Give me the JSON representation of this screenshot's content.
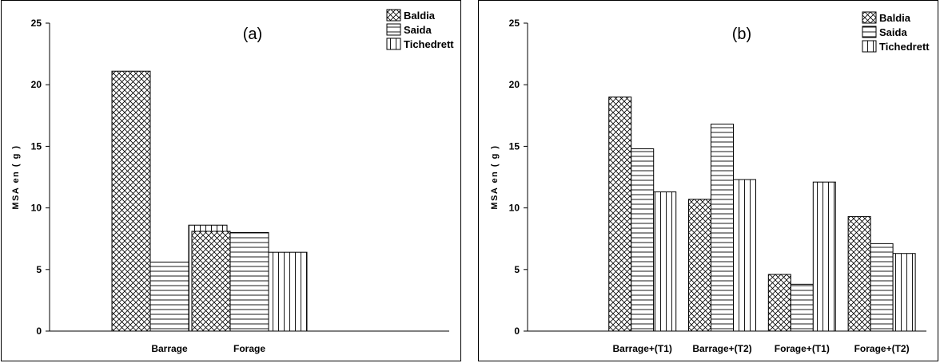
{
  "chart_data": [
    {
      "type": "bar",
      "title": "(a)",
      "xlabel": "",
      "ylabel": "MSA en  ( g )",
      "ylim": [
        0,
        25
      ],
      "yticks": [
        "0",
        "5",
        "10",
        "15",
        "20",
        "25"
      ],
      "categories": [
        "Barrage",
        "Forage"
      ],
      "series": [
        {
          "name": "Baldia",
          "pattern": "crosshatch",
          "values": [
            21.1,
            8.1
          ]
        },
        {
          "name": "Saida",
          "pattern": "horizontal",
          "values": [
            5.6,
            8.0
          ]
        },
        {
          "name": "Tichedrett",
          "pattern": "vertical",
          "values": [
            8.6,
            6.4
          ]
        }
      ],
      "legend": "top-right",
      "grid": false
    },
    {
      "type": "bar",
      "title": "(b)",
      "xlabel": "",
      "ylabel": "MSA en  ( g )",
      "ylim": [
        0,
        25
      ],
      "yticks": [
        "0",
        "5",
        "10",
        "15",
        "20",
        "25"
      ],
      "categories": [
        "Barrage+(T1)",
        "Barrage+(T2)",
        "Forage+(T1)",
        "Forage+(T2)"
      ],
      "series": [
        {
          "name": "Baldia",
          "pattern": "crosshatch",
          "values": [
            19.0,
            10.7,
            4.6,
            9.3
          ]
        },
        {
          "name": "Saida",
          "pattern": "horizontal",
          "values": [
            14.8,
            16.8,
            3.8,
            7.1
          ]
        },
        {
          "name": "Tichedrett",
          "pattern": "vertical",
          "values": [
            11.3,
            12.3,
            12.1,
            6.3
          ]
        }
      ],
      "legend": "top-right",
      "grid": false
    }
  ]
}
